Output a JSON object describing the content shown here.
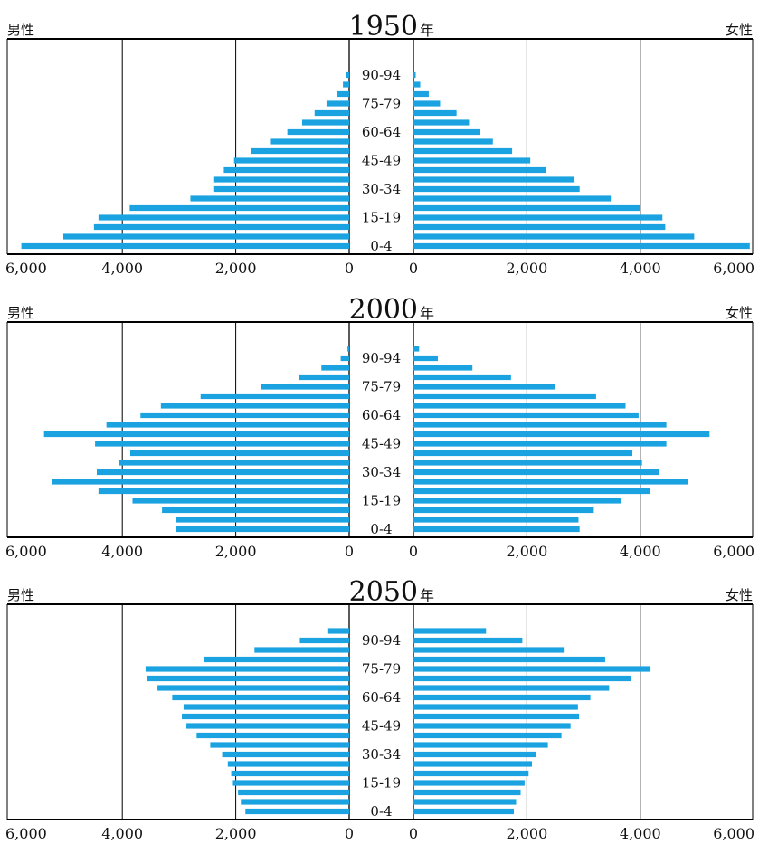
{
  "chart_data": [
    {
      "type": "bar",
      "title_year": "1950",
      "title_suffix": "年",
      "left_label": "男性",
      "right_label": "女性",
      "categories": [
        "0-4",
        "5-9",
        "10-14",
        "15-19",
        "20-24",
        "25-29",
        "30-34",
        "35-39",
        "40-44",
        "45-49",
        "50-54",
        "55-59",
        "60-64",
        "65-69",
        "70-74",
        "75-79",
        "80-84",
        "85-89",
        "90-94",
        "95-99"
      ],
      "category_labels": [
        "0-4",
        "15-19",
        "30-34",
        "45-49",
        "60-64",
        "75-79",
        "90-94"
      ],
      "series": [
        {
          "name": "男性",
          "side": "left",
          "values": [
            5780,
            5040,
            4500,
            4420,
            3870,
            2800,
            2380,
            2380,
            2210,
            2030,
            1730,
            1380,
            1090,
            830,
            610,
            400,
            220,
            110,
            50,
            0
          ]
        },
        {
          "name": "女性",
          "side": "right",
          "values": [
            5930,
            4950,
            4440,
            4390,
            4000,
            3480,
            2930,
            2840,
            2340,
            2060,
            1740,
            1400,
            1180,
            980,
            760,
            470,
            270,
            120,
            40,
            0
          ]
        }
      ],
      "xlim": [
        0,
        6000
      ],
      "ticks": [
        "6,000",
        "4,000",
        "2,000",
        "0",
        "0",
        "2,000",
        "4,000",
        "6,000"
      ]
    },
    {
      "type": "bar",
      "title_year": "2000",
      "title_suffix": "年",
      "left_label": "男性",
      "right_label": "女性",
      "categories": [
        "0-4",
        "5-9",
        "10-14",
        "15-19",
        "20-24",
        "25-29",
        "30-34",
        "35-39",
        "40-44",
        "45-49",
        "50-54",
        "55-59",
        "60-64",
        "65-69",
        "70-74",
        "75-79",
        "80-84",
        "85-89",
        "90-94",
        "95-99"
      ],
      "category_labels": [
        "0-4",
        "15-19",
        "30-34",
        "45-49",
        "60-64",
        "75-79",
        "90-94"
      ],
      "series": [
        {
          "name": "男性",
          "side": "left",
          "values": [
            3050,
            3050,
            3300,
            3820,
            4420,
            5240,
            4450,
            4060,
            3860,
            4480,
            5380,
            4280,
            3680,
            3320,
            2620,
            1560,
            890,
            490,
            150,
            30
          ]
        },
        {
          "name": "女性",
          "side": "right",
          "values": [
            2930,
            2910,
            3180,
            3660,
            4170,
            4840,
            4330,
            4030,
            3860,
            4460,
            5220,
            4460,
            3970,
            3740,
            3220,
            2500,
            1720,
            1040,
            430,
            100
          ]
        }
      ],
      "xlim": [
        0,
        6000
      ],
      "ticks": [
        "6,000",
        "4,000",
        "2,000",
        "0",
        "0",
        "2,000",
        "4,000",
        "6,000"
      ]
    },
    {
      "type": "bar",
      "title_year": "2050",
      "title_suffix": "年",
      "left_label": "男性",
      "right_label": "女性",
      "categories": [
        "0-4",
        "5-9",
        "10-14",
        "15-19",
        "20-24",
        "25-29",
        "30-34",
        "35-39",
        "40-44",
        "45-49",
        "50-54",
        "55-59",
        "60-64",
        "65-69",
        "70-74",
        "75-79",
        "80-84",
        "85-89",
        "90-94",
        "95-99"
      ],
      "category_labels": [
        "0-4",
        "15-19",
        "30-34",
        "45-49",
        "60-64",
        "75-79",
        "90-94"
      ],
      "series": [
        {
          "name": "男性",
          "side": "left",
          "values": [
            1830,
            1910,
            1960,
            2050,
            2080,
            2140,
            2240,
            2450,
            2690,
            2870,
            2950,
            2920,
            3120,
            3380,
            3570,
            3590,
            2560,
            1670,
            870,
            370
          ]
        },
        {
          "name": "女性",
          "side": "right",
          "values": [
            1770,
            1810,
            1890,
            1960,
            2030,
            2090,
            2160,
            2370,
            2610,
            2770,
            2920,
            2900,
            3120,
            3450,
            3840,
            4180,
            3380,
            2650,
            1920,
            1280
          ]
        }
      ],
      "xlim": [
        0,
        6000
      ],
      "ticks": [
        "6,000",
        "4,000",
        "2,000",
        "0",
        "0",
        "2,000",
        "4,000",
        "6,000"
      ]
    }
  ],
  "colors": {
    "bar": "#1aa3e0",
    "axis": "#000000",
    "grid": "#000000",
    "text": "#111111"
  }
}
